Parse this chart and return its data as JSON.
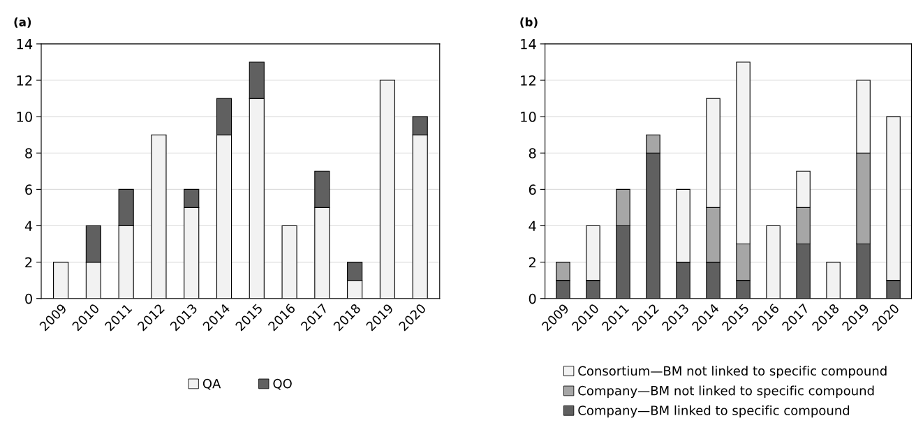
{
  "chart_data": [
    {
      "type": "bar",
      "title": "(a)",
      "stacked": true,
      "categories": [
        "2009",
        "2010",
        "2011",
        "2012",
        "2013",
        "2014",
        "2015",
        "2016",
        "2017",
        "2018",
        "2019",
        "2020"
      ],
      "ylim": [
        0,
        14
      ],
      "yticks": [
        0,
        2,
        4,
        6,
        8,
        10,
        12,
        14
      ],
      "grid": "y",
      "legend": "bottom",
      "series": [
        {
          "name": "QA",
          "color": "#f2f2f2",
          "values": [
            2,
            2,
            4,
            9,
            5,
            9,
            11,
            4,
            5,
            1,
            12,
            9
          ]
        },
        {
          "name": "QO",
          "color": "#606060",
          "values": [
            0,
            2,
            2,
            0,
            1,
            2,
            2,
            0,
            2,
            1,
            0,
            1
          ]
        }
      ]
    },
    {
      "type": "bar",
      "title": "(b)",
      "stacked": true,
      "categories": [
        "2009",
        "2010",
        "2011",
        "2012",
        "2013",
        "2014",
        "2015",
        "2016",
        "2017",
        "2018",
        "2019",
        "2020"
      ],
      "ylim": [
        0,
        14
      ],
      "yticks": [
        0,
        2,
        4,
        6,
        8,
        10,
        12,
        14
      ],
      "grid": "y",
      "legend": "bottom",
      "series": [
        {
          "name": "Company—BM linked to specific compound",
          "color": "#606060",
          "values": [
            1,
            1,
            4,
            8,
            2,
            2,
            1,
            0,
            3,
            0,
            3,
            1
          ]
        },
        {
          "name": "Company—BM not linked to specific compound",
          "color": "#a6a6a6",
          "values": [
            1,
            0,
            2,
            1,
            0,
            3,
            2,
            0,
            2,
            0,
            5,
            0
          ]
        },
        {
          "name": "Consortium—BM not linked to specific compound",
          "color": "#f2f2f2",
          "values": [
            0,
            3,
            0,
            0,
            4,
            6,
            10,
            4,
            2,
            2,
            4,
            9
          ]
        }
      ]
    }
  ]
}
